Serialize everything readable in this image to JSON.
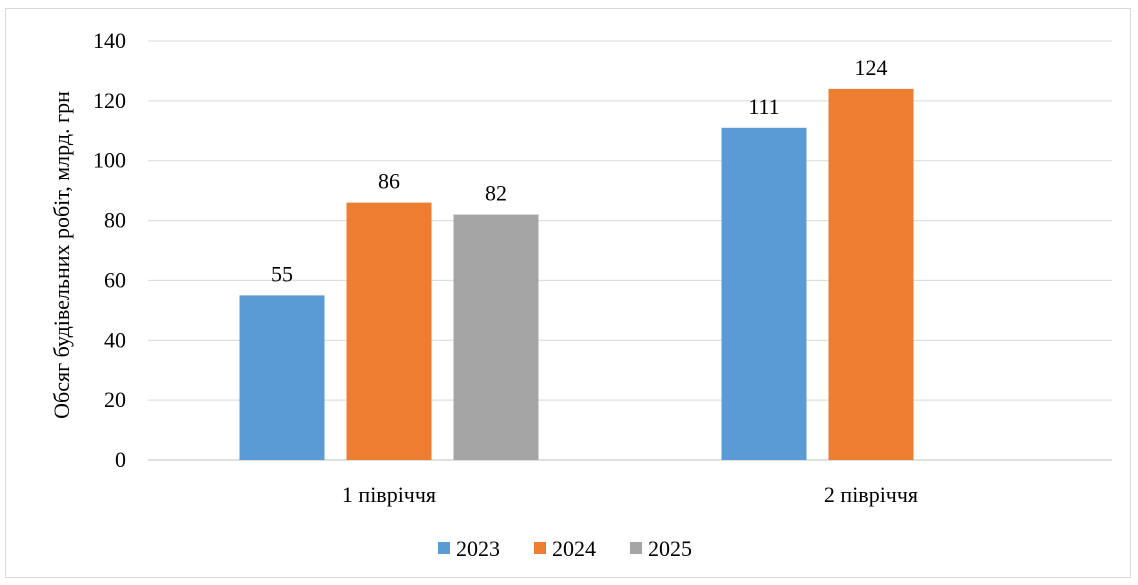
{
  "chart_data": {
    "type": "bar",
    "categories": [
      "1 півріччя",
      "2 півріччя"
    ],
    "series": [
      {
        "name": "2023",
        "color": "#5b9bd5",
        "values": [
          55,
          111
        ]
      },
      {
        "name": "2024",
        "color": "#ed7d31",
        "values": [
          86,
          124
        ]
      },
      {
        "name": "2025",
        "color": "#a5a5a5",
        "values": [
          82,
          null
        ]
      }
    ],
    "ylabel": "Обсяг будівельних робіт, млрд. грн",
    "ylim": [
      0,
      140
    ],
    "yticks": [
      0,
      20,
      40,
      60,
      80,
      100,
      120,
      140
    ],
    "grid": true,
    "legend_position": "bottom",
    "data_labels": true
  }
}
